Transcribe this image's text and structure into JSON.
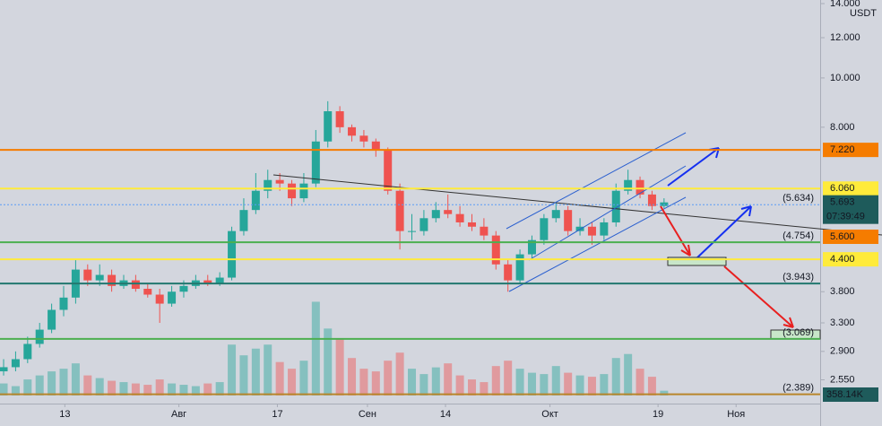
{
  "chart_data": {
    "type": "candlestick",
    "currency": "USDT",
    "log_scale": true,
    "ylim": [
      2.29,
      14.23
    ],
    "yticks": [
      {
        "value": 14,
        "label": "14.000"
      },
      {
        "value": 12,
        "label": "12.000"
      },
      {
        "value": 10,
        "label": "10.000"
      },
      {
        "value": 8,
        "label": "8.000"
      },
      {
        "value": 3.8,
        "label": "3.800"
      },
      {
        "value": 3.3,
        "label": "3.300"
      },
      {
        "value": 2.9,
        "label": "2.900"
      },
      {
        "value": 2.55,
        "label": "2.550"
      }
    ],
    "xlim": [
      -0.3,
      68
    ],
    "xticks": [
      {
        "value": 5.1,
        "label": "13"
      },
      {
        "value": 14.6,
        "label": "Авг"
      },
      {
        "value": 22.8,
        "label": "17"
      },
      {
        "value": 30.3,
        "label": "Сен"
      },
      {
        "value": 36.8,
        "label": "14"
      },
      {
        "value": 45.5,
        "label": "Окт"
      },
      {
        "value": 54.5,
        "label": "19"
      },
      {
        "value": 61,
        "label": "Ноя"
      }
    ],
    "up_color": "#26a69a",
    "down_color": "#ef5350",
    "open": [
      2.65,
      2.7,
      2.8,
      3.0,
      3.2,
      3.5,
      3.7,
      4.2,
      4.0,
      4.1,
      3.9,
      4.0,
      3.85,
      3.75,
      3.6,
      3.8,
      3.9,
      4.0,
      3.95,
      4.05,
      5.0,
      5.5,
      6.0,
      6.3,
      6.2,
      5.8,
      6.2,
      7.5,
      8.6,
      8.0,
      7.7,
      7.5,
      7.2,
      6.0,
      5.0,
      5.0,
      5.3,
      5.5,
      5.4,
      5.2,
      5.1,
      4.9,
      4.3,
      4.0,
      4.5,
      4.8,
      5.3,
      5.5,
      5.0,
      5.1,
      4.9,
      5.2,
      6.0,
      6.3,
      5.9,
      5.6
    ],
    "high": [
      2.8,
      2.9,
      3.1,
      3.3,
      3.6,
      3.9,
      4.4,
      4.3,
      4.3,
      4.2,
      4.1,
      4.1,
      3.95,
      3.85,
      3.9,
      4.0,
      4.1,
      4.1,
      4.15,
      5.1,
      5.8,
      6.5,
      6.6,
      6.5,
      6.3,
      6.5,
      7.9,
      9.0,
      8.8,
      8.1,
      7.9,
      7.6,
      7.3,
      6.2,
      5.4,
      5.5,
      5.7,
      5.9,
      5.6,
      5.4,
      5.3,
      5.0,
      4.4,
      4.6,
      4.9,
      5.4,
      5.7,
      5.6,
      5.3,
      5.2,
      5.3,
      6.2,
      6.6,
      6.4,
      6.0,
      5.8
    ],
    "low": [
      2.6,
      2.65,
      2.75,
      2.95,
      3.15,
      3.4,
      3.6,
      3.9,
      3.9,
      3.8,
      3.85,
      3.8,
      3.7,
      3.3,
      3.55,
      3.7,
      3.85,
      3.9,
      3.9,
      4.0,
      4.9,
      5.4,
      5.8,
      6.0,
      5.6,
      5.7,
      6.1,
      7.3,
      7.8,
      7.5,
      7.3,
      7.0,
      5.9,
      4.6,
      4.8,
      4.9,
      5.2,
      5.3,
      5.1,
      5.0,
      4.8,
      4.2,
      3.8,
      3.95,
      4.4,
      4.7,
      5.2,
      4.9,
      4.9,
      4.7,
      4.8,
      5.1,
      5.9,
      5.8,
      5.5,
      5.55
    ],
    "close": [
      2.7,
      2.8,
      3.0,
      3.2,
      3.5,
      3.7,
      4.2,
      4.0,
      4.1,
      3.9,
      4.0,
      3.85,
      3.75,
      3.6,
      3.8,
      3.9,
      4.0,
      3.95,
      4.05,
      5.0,
      5.5,
      6.0,
      6.3,
      6.2,
      5.8,
      6.2,
      7.5,
      8.6,
      8.0,
      7.7,
      7.5,
      7.2,
      6.0,
      5.0,
      5.0,
      5.3,
      5.5,
      5.4,
      5.2,
      5.1,
      4.9,
      4.3,
      4.0,
      4.5,
      4.8,
      5.3,
      5.5,
      5.0,
      5.1,
      4.9,
      5.2,
      6.0,
      6.3,
      5.9,
      5.6,
      5.693
    ],
    "volume_lim": [
      0,
      7500
    ],
    "volumes": [
      900,
      700,
      1200,
      1500,
      1800,
      2000,
      2400,
      1500,
      1300,
      1100,
      1000,
      900,
      800,
      1200,
      900,
      800,
      700,
      900,
      1000,
      3800,
      3000,
      3500,
      3800,
      2500,
      2000,
      2600,
      7000,
      5000,
      4200,
      2800,
      2000,
      1800,
      2600,
      3200,
      2000,
      1600,
      2100,
      2400,
      1500,
      1200,
      1000,
      2200,
      2600,
      2000,
      1700,
      1600,
      2200,
      1700,
      1500,
      1400,
      1600,
      2800,
      3100,
      2000,
      1400,
      358.14
    ],
    "volume_label": "358.14K",
    "levels": [
      {
        "value": 7.22,
        "label": "7.220",
        "color": "#f57c00",
        "box": true,
        "dotted": false
      },
      {
        "value": 6.06,
        "label": "6.060",
        "color": "#ffeb3b",
        "box": true,
        "dotted": false
      },
      {
        "value": 5.634,
        "label": "(5.634)",
        "color": "#5b9cf6",
        "box": false,
        "dotted": true
      },
      {
        "value": 4.754,
        "label": "(4.754)",
        "color": "#4caf50",
        "box": false,
        "dotted": false
      },
      {
        "value": 4.4,
        "label": "4.400",
        "color": "#ffeb3b",
        "box": true,
        "dotted": false
      },
      {
        "value": 3.943,
        "label": "(3.943)",
        "color": "#22786f",
        "box": false,
        "dotted": false
      },
      {
        "value": 3.069,
        "label": "(3.069)",
        "color": "#4caf50",
        "box": false,
        "dotted": false
      },
      {
        "value": 2.389,
        "label": "(2.389)",
        "color": "#b8862b",
        "box": false,
        "dotted": false
      }
    ],
    "last_price": {
      "value": 5.693,
      "label": "5.693"
    },
    "countdown": "07:39:49",
    "tag": {
      "value": 5.6,
      "label": "5.600"
    }
  }
}
